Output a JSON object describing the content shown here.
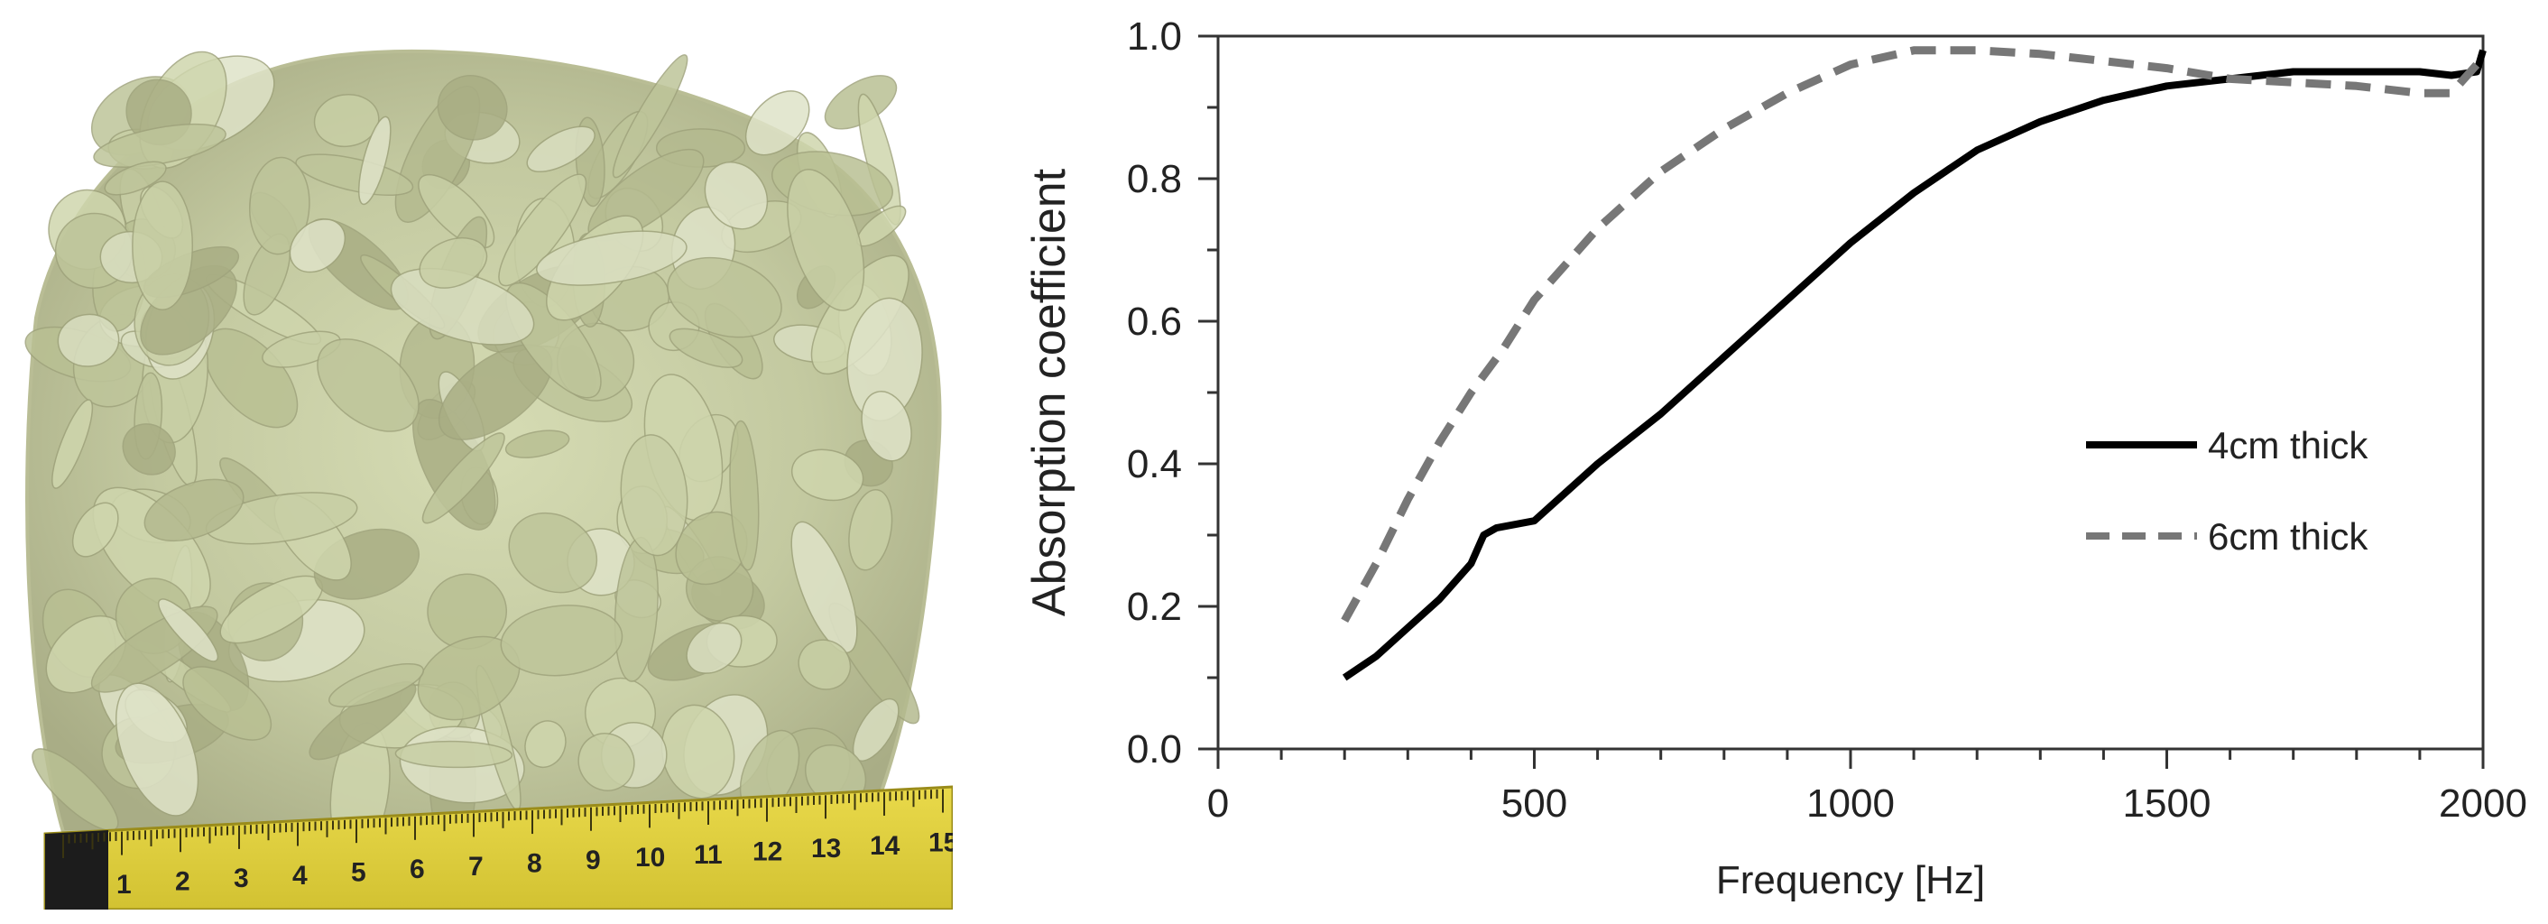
{
  "photo": {
    "ruler_numbers": [
      "1",
      "2",
      "3",
      "4",
      "5",
      "6",
      "7",
      "8",
      "9",
      "10",
      "11",
      "12",
      "13",
      "14",
      "15"
    ]
  },
  "chart_data": {
    "type": "line",
    "xlabel": "Frequency [Hz]",
    "ylabel": "Absorption coefficient",
    "xlim": [
      0,
      2000
    ],
    "ylim": [
      0,
      1.0
    ],
    "xticks": [
      0,
      500,
      1000,
      1500,
      2000
    ],
    "xtick_labels": [
      "0",
      "500",
      "1000",
      "1500",
      "2000"
    ],
    "yticks": [
      0.0,
      0.2,
      0.4,
      0.6,
      0.8,
      1.0
    ],
    "ytick_labels": [
      "0.0",
      "0.2",
      "0.4",
      "0.6",
      "0.8",
      "1.0"
    ],
    "grid": false,
    "legend_position": "right-middle",
    "series": [
      {
        "name": "4cm thick",
        "style": "solid",
        "color": "#000000",
        "x": [
          200,
          250,
          300,
          350,
          400,
          420,
          440,
          500,
          550,
          600,
          700,
          800,
          900,
          1000,
          1100,
          1200,
          1300,
          1400,
          1500,
          1600,
          1700,
          1800,
          1900,
          1950,
          1990,
          2000
        ],
        "y": [
          0.1,
          0.13,
          0.17,
          0.21,
          0.26,
          0.3,
          0.31,
          0.32,
          0.36,
          0.4,
          0.47,
          0.55,
          0.63,
          0.71,
          0.78,
          0.84,
          0.88,
          0.91,
          0.93,
          0.94,
          0.95,
          0.95,
          0.95,
          0.945,
          0.95,
          0.98
        ]
      },
      {
        "name": "6cm thick",
        "style": "dashed",
        "color": "#777777",
        "x": [
          200,
          250,
          300,
          350,
          400,
          450,
          500,
          600,
          700,
          800,
          900,
          1000,
          1100,
          1200,
          1300,
          1400,
          1500,
          1600,
          1700,
          1800,
          1900,
          1950,
          2000
        ],
        "y": [
          0.18,
          0.26,
          0.35,
          0.43,
          0.5,
          0.56,
          0.63,
          0.73,
          0.81,
          0.87,
          0.92,
          0.96,
          0.98,
          0.98,
          0.975,
          0.965,
          0.955,
          0.94,
          0.935,
          0.93,
          0.92,
          0.92,
          0.97
        ]
      }
    ]
  }
}
